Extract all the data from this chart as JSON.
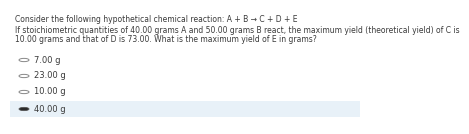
{
  "title_line1": "Consider the following hypothetical chemical reaction: A + B → C + D + E",
  "title_line2": "If stoichiometric quantities of 40.00 grams A and 50.00 grams B react, the maximum yield (theoretical yield) of C is",
  "title_line3": "10.00 grams and that of D is 73.00. What is the maximum yield of E in grams?",
  "options": [
    "7.00 g",
    "23.00 g",
    "10.00 g",
    "40.00 g"
  ],
  "selected_index": 3,
  "bg_color": "#ffffff",
  "highlight_color": "#e8f1f8",
  "text_color": "#3a3a3a",
  "circle_color": "#888888",
  "font_size_title": 5.5,
  "font_size_options": 6.0
}
